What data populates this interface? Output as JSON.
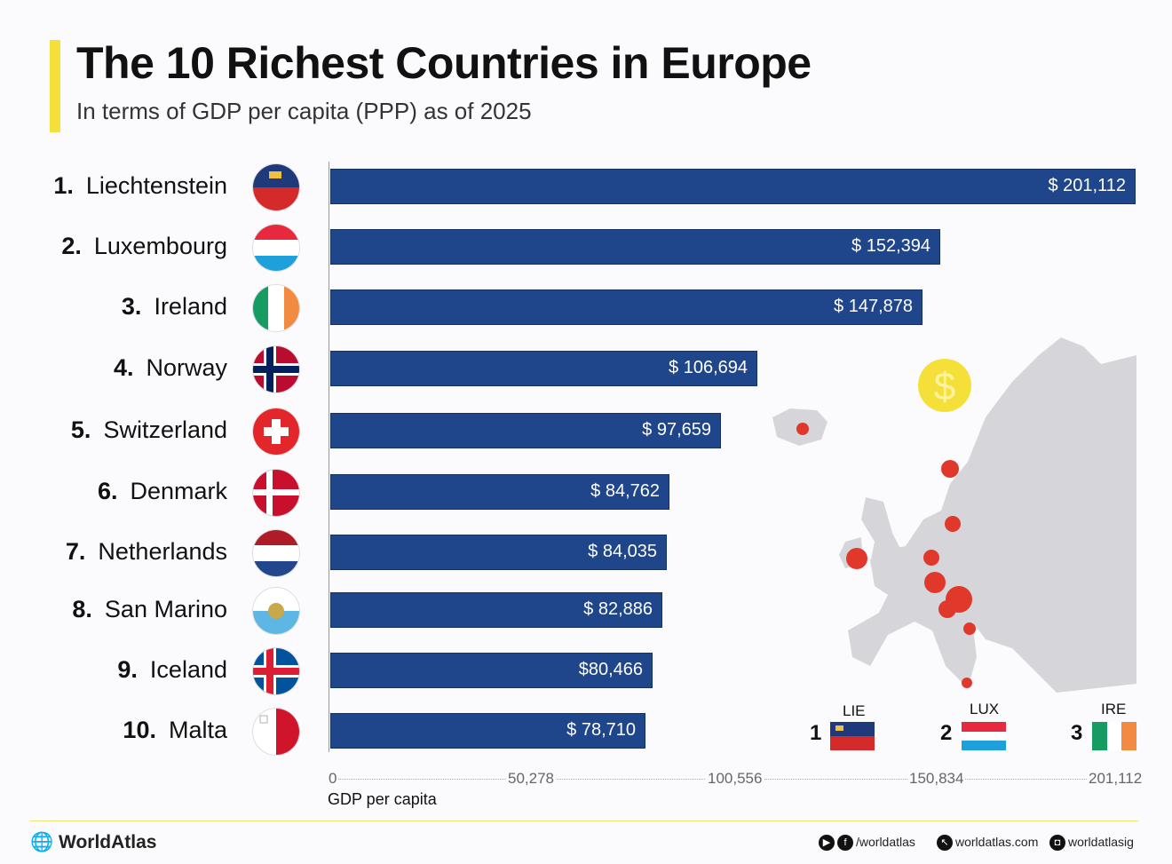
{
  "header": {
    "title": "The 10 Richest Countries in Europe",
    "subtitle": "In terms of GDP per capita (PPP) as of 2025"
  },
  "chart_data": {
    "type": "bar",
    "orientation": "horizontal",
    "title": "The 10 Richest Countries in Europe",
    "subtitle": "In terms of GDP per capita (PPP) as of 2025",
    "xlabel": "GDP per capita",
    "xlim": [
      0,
      201112
    ],
    "xticks": [
      "0",
      "50,278",
      "100,556",
      "150,834",
      "201,112"
    ],
    "categories": [
      {
        "rank": "1.",
        "name": "Liechtenstein",
        "flag": "liechtenstein"
      },
      {
        "rank": "2.",
        "name": "Luxembourg",
        "flag": "luxembourg"
      },
      {
        "rank": "3.",
        "name": "Ireland",
        "flag": "ireland"
      },
      {
        "rank": "4.",
        "name": "Norway",
        "flag": "norway"
      },
      {
        "rank": "5.",
        "name": "Switzerland",
        "flag": "switzerland"
      },
      {
        "rank": "6.",
        "name": "Denmark",
        "flag": "denmark"
      },
      {
        "rank": "7.",
        "name": "Netherlands",
        "flag": "netherlands"
      },
      {
        "rank": "8.",
        "name": "San Marino",
        "flag": "san-marino"
      },
      {
        "rank": "9.",
        "name": "Iceland",
        "flag": "iceland"
      },
      {
        "rank": "10.",
        "name": "Malta",
        "flag": "malta"
      }
    ],
    "values": [
      201112,
      152394,
      147878,
      106694,
      97659,
      84762,
      84035,
      82886,
      80466,
      78710
    ],
    "data_labels": [
      "$ 201,112",
      "$ 152,394",
      "$ 147,878",
      "$ 106,694",
      "$ 97,659",
      "$ 84,762",
      "$ 84,035",
      "$ 82,886",
      "$80,466",
      "$ 78,710"
    ],
    "bar_color": "#1f468a",
    "grid": false
  },
  "legend": [
    {
      "rank": "1",
      "code": "LIE"
    },
    {
      "rank": "2",
      "code": "LUX"
    },
    {
      "rank": "3",
      "code": "IRE"
    }
  ],
  "footer": {
    "brand": "WorldAtlas",
    "social": "/worldatlas",
    "website": "worldatlas.com",
    "instagram": "worldatlasig"
  },
  "colors": {
    "accent": "#f5e03a",
    "bar": "#1f468a",
    "map": "#d6d6da",
    "marker": "#e0392b"
  }
}
